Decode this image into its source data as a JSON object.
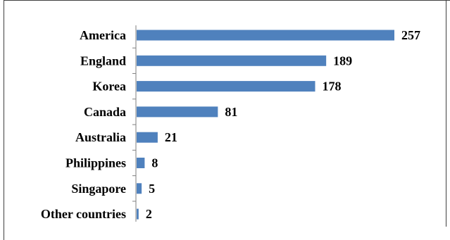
{
  "chart_data": {
    "type": "bar",
    "orientation": "horizontal",
    "categories": [
      "America",
      "England",
      "Korea",
      "Canada",
      "Australia",
      "Philippines",
      "Singapore",
      "Other countries"
    ],
    "values": [
      257,
      189,
      178,
      81,
      21,
      8,
      5,
      2
    ],
    "data_labels": [
      "257",
      "189",
      "178",
      "81",
      "21",
      "8",
      "5",
      "2"
    ],
    "title": "",
    "xlabel": "",
    "ylabel": "",
    "xlim": [
      0,
      257
    ],
    "grid": false,
    "legend": "none",
    "bar_color": "#4F81BD",
    "axis_color": "#7F7F7F",
    "border_color": "#404040"
  }
}
